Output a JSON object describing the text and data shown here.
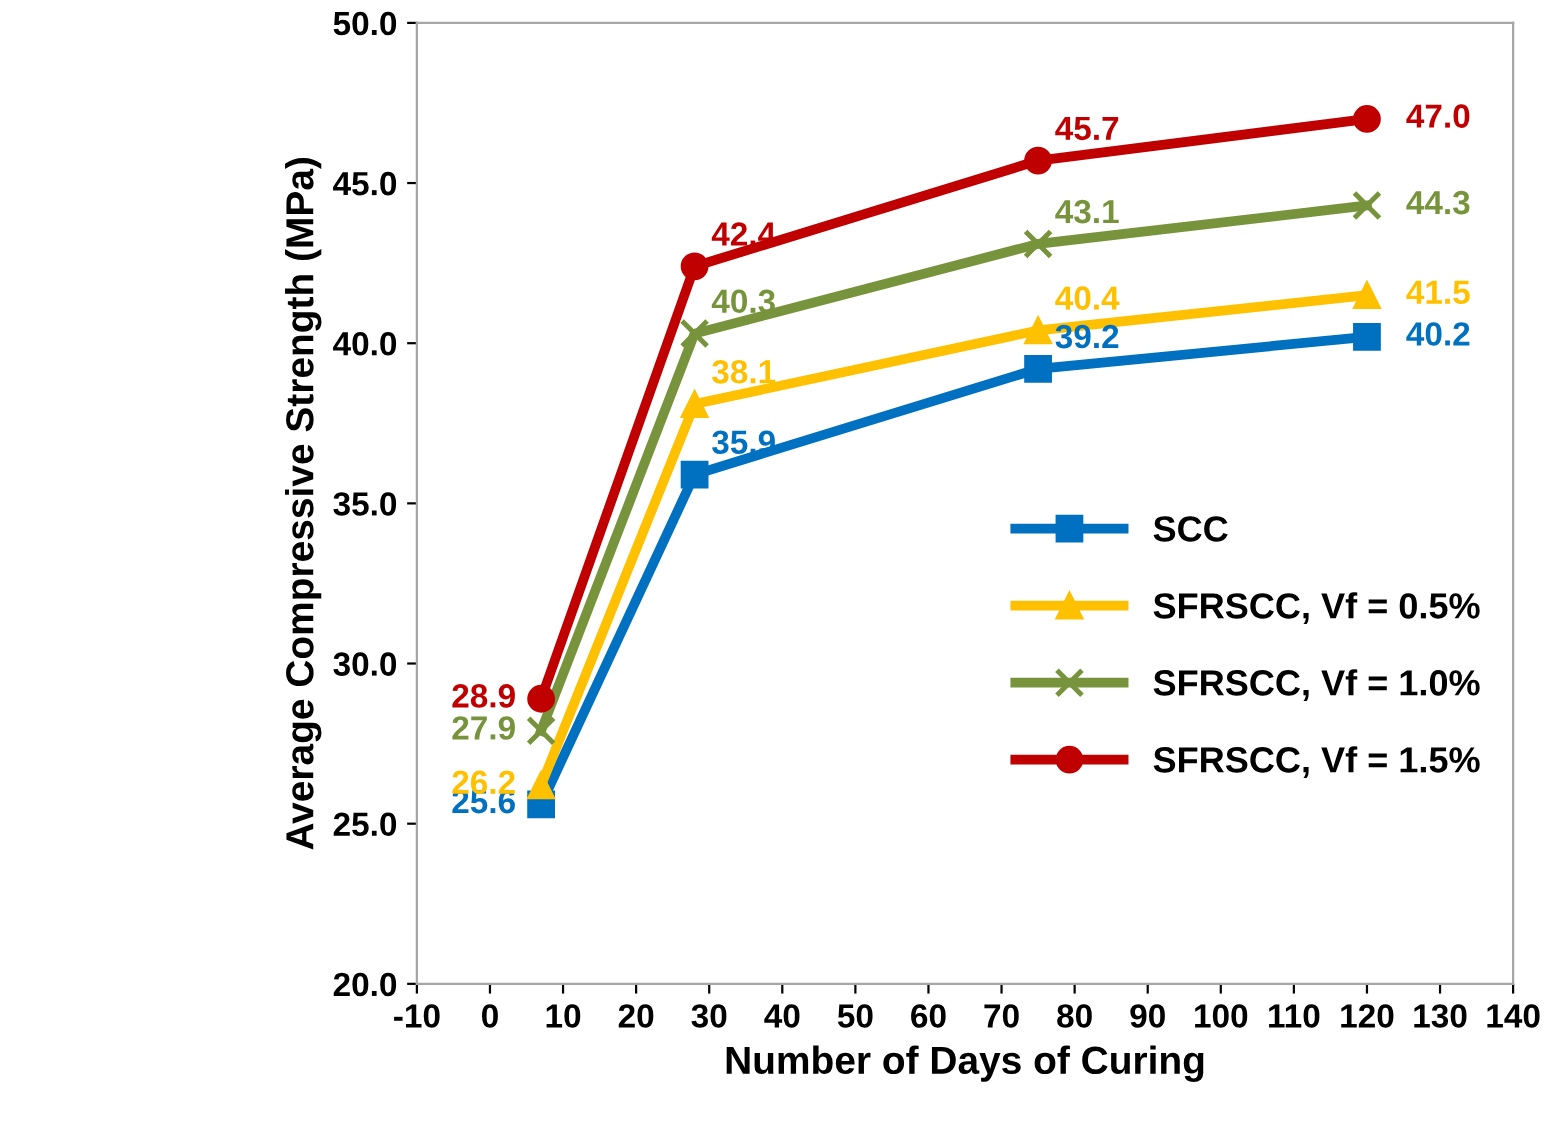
{
  "chart_data": {
    "type": "line",
    "xlabel": "Number of Days of Curing",
    "ylabel": "Average Compressive Strength (MPa)",
    "x": [
      7,
      28,
      75,
      120
    ],
    "xlim": [
      -10,
      140
    ],
    "xticks": [
      -10,
      0,
      10,
      20,
      30,
      40,
      50,
      60,
      70,
      80,
      90,
      100,
      110,
      120,
      130,
      140
    ],
    "ylim": [
      20,
      50
    ],
    "yticks": [
      {
        "value": 20,
        "label": "20.0"
      },
      {
        "value": 25,
        "label": "25.0"
      },
      {
        "value": 30,
        "label": "30.0"
      },
      {
        "value": 35,
        "label": "35.0"
      },
      {
        "value": 40,
        "label": "40.0"
      },
      {
        "value": 45,
        "label": "45.0"
      },
      {
        "value": 50,
        "label": "50.0"
      }
    ],
    "grid": false,
    "legend": "center right",
    "line_style": "solid",
    "series": [
      {
        "name": "SCC",
        "color": "#0070c0",
        "marker": "square",
        "values": [
          25.6,
          35.9,
          39.2,
          40.2
        ],
        "value_labels": [
          "25.6",
          "35.9",
          "39.2",
          "40.2"
        ]
      },
      {
        "name": "SFRSCC, Vf = 0.5%",
        "color": "#ffc000",
        "marker": "triangle",
        "values": [
          26.2,
          38.1,
          40.4,
          41.5
        ],
        "value_labels": [
          "26.2",
          "38.1",
          "40.4",
          "41.5"
        ]
      },
      {
        "name": "SFRSCC, Vf = 1.0%",
        "color": "#77933c",
        "marker": "cross",
        "values": [
          27.9,
          40.3,
          43.1,
          44.3
        ],
        "value_labels": [
          "27.9",
          "40.3",
          "43.1",
          "44.3"
        ]
      },
      {
        "name": "SFRSCC, Vf = 1.5%",
        "color": "#c00000",
        "marker": "circle",
        "values": [
          28.9,
          42.4,
          45.7,
          47.0
        ],
        "value_labels": [
          "28.9",
          "42.4",
          "45.7",
          "47.0"
        ]
      }
    ]
  }
}
